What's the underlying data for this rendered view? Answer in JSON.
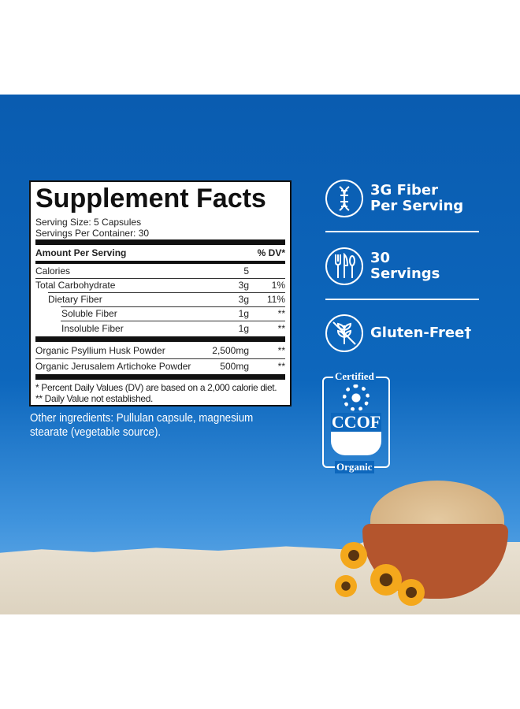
{
  "facts": {
    "title": "Supplement Facts",
    "serving_size": "Serving Size: 5 Capsules",
    "servings_per_container": "Servings Per Container: 30",
    "header_amount": "Amount Per Serving",
    "header_dv": "% DV*",
    "rows": [
      {
        "name": "Calories",
        "amount": "5",
        "dv": ""
      },
      {
        "name": "Total Carbohydrate",
        "amount": "3g",
        "dv": "1%"
      },
      {
        "name": "Dietary Fiber",
        "amount": "3g",
        "dv": "11%"
      },
      {
        "name": "Soluble Fiber",
        "amount": "1g",
        "dv": "**"
      },
      {
        "name": "Insoluble Fiber",
        "amount": "1g",
        "dv": "**"
      },
      {
        "name": "Organic Psyllium Husk Powder",
        "amount": "2,500mg",
        "dv": "**"
      },
      {
        "name": "Organic Jerusalem Artichoke Powder",
        "amount": "500mg",
        "dv": "**"
      }
    ],
    "footnote1": "* Percent Daily Values (DV) are based on a 2,000 calorie diet.",
    "footnote2": "** Daily Value not established."
  },
  "other_ingredients": "Other ingredients: Pullulan capsule, magnesium stearate (vegetable source).",
  "features": [
    {
      "icon": "dna-icon",
      "line1": "3G Fiber",
      "line2": "Per Serving"
    },
    {
      "icon": "utensils-icon",
      "line1": "30",
      "line2": "Servings"
    },
    {
      "icon": "no-wheat-icon",
      "line1": "Gluten-Free†",
      "line2": ""
    }
  ],
  "certification": {
    "top": "Certified",
    "middle": "CCOF",
    "bottom": "Organic"
  },
  "colors": {
    "background_blue": "#0a5cb0"
  }
}
